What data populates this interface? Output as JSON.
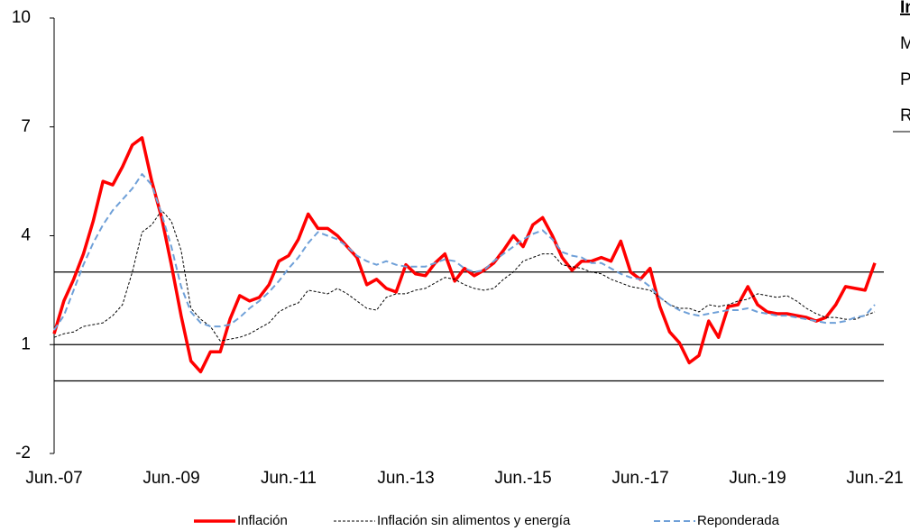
{
  "chart_data": {
    "type": "line",
    "categories": [
      "Jun.-07",
      null,
      null,
      null,
      null,
      null,
      null,
      null,
      null,
      null,
      null,
      null,
      "Jun.-09",
      null,
      null,
      null,
      null,
      null,
      null,
      null,
      null,
      null,
      null,
      null,
      "Jun.-11",
      null,
      null,
      null,
      null,
      null,
      null,
      null,
      null,
      null,
      null,
      null,
      "Jun.-13",
      null,
      null,
      null,
      null,
      null,
      null,
      null,
      null,
      null,
      null,
      null,
      "Jun.-15",
      null,
      null,
      null,
      null,
      null,
      null,
      null,
      null,
      null,
      null,
      null,
      "Jun.-17",
      null,
      null,
      null,
      null,
      null,
      null,
      null,
      null,
      null,
      null,
      null,
      "Jun.-19",
      null,
      null,
      null,
      null,
      null,
      null,
      null,
      null,
      null,
      null,
      null,
      "Jun.-21"
    ],
    "series": [
      {
        "name": "Inflación",
        "color": "#ff0000",
        "values": [
          1.3,
          2.2,
          2.8,
          3.5,
          4.4,
          5.5,
          5.4,
          5.9,
          6.5,
          6.7,
          5.5,
          4.5,
          3.2,
          1.8,
          0.55,
          0.25,
          0.8,
          0.8,
          1.7,
          2.35,
          2.2,
          2.3,
          2.65,
          3.3,
          3.45,
          3.9,
          4.6,
          4.2,
          4.2,
          4.0,
          3.7,
          3.4,
          2.65,
          2.8,
          2.55,
          2.45,
          3.2,
          2.95,
          2.9,
          3.25,
          3.5,
          2.75,
          3.1,
          2.9,
          3.05,
          3.25,
          3.6,
          4.0,
          3.7,
          4.3,
          4.5,
          4.0,
          3.4,
          3.05,
          3.3,
          3.3,
          3.4,
          3.3,
          3.85,
          3.0,
          2.8,
          3.1,
          2.05,
          1.35,
          1.05,
          0.5,
          0.7,
          1.65,
          1.2,
          2.05,
          2.1,
          2.6,
          2.1,
          1.9,
          1.85,
          1.85,
          1.8,
          1.75,
          1.65,
          1.75,
          2.1,
          2.6,
          2.55,
          2.5,
          3.25
        ]
      },
      {
        "name": "Inflación sin alimentos y energía",
        "color": "#000000",
        "values": [
          1.2,
          1.3,
          1.35,
          1.5,
          1.55,
          1.6,
          1.8,
          2.1,
          3.0,
          4.1,
          4.3,
          4.7,
          4.4,
          3.6,
          2.0,
          1.7,
          1.5,
          1.1,
          1.15,
          1.2,
          1.3,
          1.45,
          1.6,
          1.9,
          2.05,
          2.15,
          2.5,
          2.45,
          2.4,
          2.55,
          2.4,
          2.2,
          2.0,
          1.95,
          2.3,
          2.4,
          2.4,
          2.5,
          2.55,
          2.7,
          2.85,
          2.8,
          2.65,
          2.55,
          2.5,
          2.55,
          2.8,
          3.0,
          3.3,
          3.4,
          3.5,
          3.5,
          3.2,
          3.15,
          3.1,
          3.0,
          2.95,
          2.8,
          2.7,
          2.6,
          2.55,
          2.5,
          2.3,
          2.1,
          2.0,
          2.0,
          1.9,
          2.1,
          2.05,
          2.1,
          2.2,
          2.25,
          2.4,
          2.35,
          2.3,
          2.35,
          2.2,
          2.0,
          1.85,
          1.75,
          1.75,
          1.7,
          1.7,
          1.8,
          1.9
        ]
      },
      {
        "name": "Reponderada",
        "color": "#6fa0d8",
        "values": [
          1.4,
          1.8,
          2.5,
          3.2,
          3.8,
          4.3,
          4.7,
          5.0,
          5.3,
          5.7,
          5.4,
          4.6,
          3.7,
          2.6,
          1.9,
          1.6,
          1.5,
          1.5,
          1.55,
          1.75,
          2.0,
          2.2,
          2.45,
          2.75,
          3.1,
          3.4,
          3.8,
          4.1,
          4.0,
          3.9,
          3.7,
          3.45,
          3.3,
          3.2,
          3.3,
          3.2,
          3.15,
          3.15,
          3.15,
          3.25,
          3.35,
          3.3,
          3.1,
          3.0,
          3.05,
          3.3,
          3.5,
          3.7,
          3.9,
          4.05,
          4.15,
          3.9,
          3.55,
          3.45,
          3.4,
          3.25,
          3.25,
          3.1,
          2.95,
          2.85,
          2.8,
          2.6,
          2.3,
          2.1,
          1.95,
          1.85,
          1.8,
          1.85,
          1.9,
          1.95,
          1.95,
          2.0,
          1.9,
          1.85,
          1.8,
          1.8,
          1.75,
          1.7,
          1.65,
          1.6,
          1.6,
          1.65,
          1.75,
          1.8,
          2.1
        ]
      }
    ],
    "reference_lines": [
      3,
      1,
      0
    ],
    "ylim": [
      -2,
      10
    ],
    "yticks": [
      -2,
      1,
      4,
      7,
      10
    ],
    "side_text": [
      "In",
      "M",
      "P",
      "R"
    ]
  }
}
